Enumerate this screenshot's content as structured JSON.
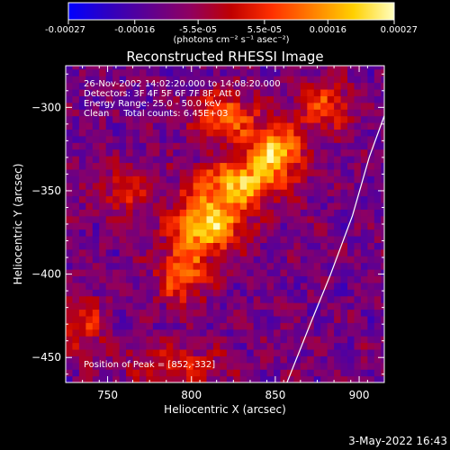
{
  "colorbar": {
    "ticks": [
      "-0.00027",
      "-0.00016",
      "-5.5e-05",
      "5.5e-05",
      "0.00016",
      "0.00027"
    ],
    "tick_values": [
      -0.00027,
      -0.00016,
      -5.5e-05,
      5.5e-05,
      0.00016,
      0.00027
    ],
    "range": [
      -0.00027,
      0.00027
    ],
    "units_label": "(photons cm⁻² s⁻¹ asec⁻²)",
    "colors": [
      "#0000ff",
      "#3000c0",
      "#600090",
      "#900060",
      "#c00000",
      "#ff3000",
      "#ff8000",
      "#ffd000",
      "#ffffc0"
    ]
  },
  "chart_data": {
    "type": "heatmap",
    "title": "Reconstructed RHESSI Image",
    "xlabel": "Heliocentric X (arcsec)",
    "ylabel": "Heliocentric Y (arcsec)",
    "xlim": [
      725,
      915
    ],
    "ylim": [
      -465,
      -275
    ],
    "x_ticks": [
      750,
      800,
      850,
      900
    ],
    "y_ticks": [
      -300,
      -350,
      -400,
      -450
    ],
    "annotations": [
      "26-Nov-2002 14:02:20.000 to 14:08:20.000",
      "Detectors: 3F 4F 5F 6F 7F 8F, Att 0",
      "Energy Range: 25.0 - 50.0 keV",
      "Clean     Total counts: 6.45E+03"
    ],
    "peak_label": "Position of Peak = [852,-332]",
    "peak_position": [
      852,
      -332
    ],
    "limb_curve": [
      [
        857,
        -465
      ],
      [
        870,
        -432
      ],
      [
        883,
        -400
      ],
      [
        896,
        -365
      ],
      [
        906,
        -330
      ],
      [
        915,
        -305
      ]
    ],
    "sources": [
      {
        "x": 810,
        "y": -370,
        "sigma_x": 15,
        "sigma_y": 12,
        "amp": 1.0
      },
      {
        "x": 830,
        "y": -345,
        "sigma_x": 18,
        "sigma_y": 10,
        "amp": 0.85
      },
      {
        "x": 850,
        "y": -325,
        "sigma_x": 12,
        "sigma_y": 10,
        "amp": 0.9
      },
      {
        "x": 795,
        "y": -400,
        "sigma_x": 10,
        "sigma_y": 12,
        "amp": 0.7
      },
      {
        "x": 820,
        "y": -305,
        "sigma_x": 14,
        "sigma_y": 10,
        "amp": 0.65
      },
      {
        "x": 880,
        "y": -300,
        "sigma_x": 12,
        "sigma_y": 10,
        "amp": 0.55
      },
      {
        "x": 760,
        "y": -350,
        "sigma_x": 12,
        "sigma_y": 10,
        "amp": 0.4
      },
      {
        "x": 735,
        "y": -430,
        "sigma_x": 10,
        "sigma_y": 12,
        "amp": 0.45
      },
      {
        "x": 790,
        "y": -455,
        "sigma_x": 20,
        "sigma_y": 8,
        "amp": 0.45
      }
    ]
  },
  "footer": {
    "date": "3-May-2022 16:43"
  }
}
